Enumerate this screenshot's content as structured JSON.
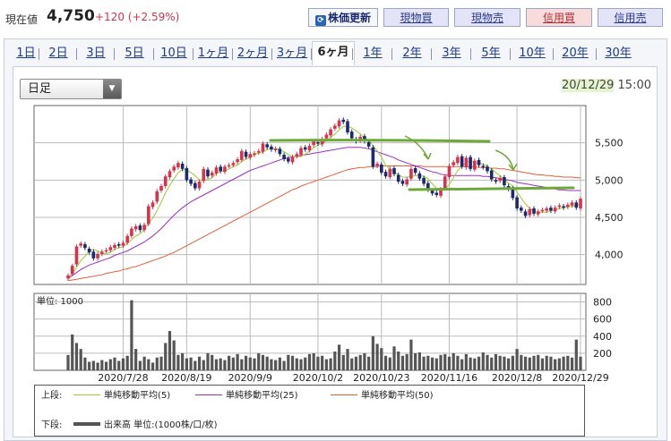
{
  "header": {
    "price_label": "現在値",
    "price_value": "4,750",
    "price_change": "+120 (+2.59%)",
    "buttons": {
      "refresh": "株価更新",
      "cash_buy": "現物買",
      "cash_sell": "現物売",
      "margin_buy": "信用買",
      "margin_sell": "信用売"
    }
  },
  "period_tabs": [
    "1日",
    "2日",
    "3日",
    "5日",
    "10日",
    "1ヶ月",
    "2ヶ月",
    "3ヶ月",
    "6ヶ月",
    "1年",
    "2年",
    "3年",
    "5年",
    "10年",
    "20年",
    "30年"
  ],
  "active_tab": "6ヶ月",
  "interval_select": {
    "value": "日足"
  },
  "datetime": {
    "date": "20/12/29",
    "time": "15:00"
  },
  "colors": {
    "up": "#d8334a",
    "down": "#1a2a6c",
    "ma5": "#9acd32",
    "ma25": "#9b30c0",
    "ma50": "#e0603a",
    "annotation": "#6fa83a",
    "volume": "#555555"
  },
  "chart_data": [
    {
      "type": "candlestick",
      "ylim": [
        3600,
        6000
      ],
      "y_ticks": [
        "5,500",
        "5,000",
        "4,500",
        "4,000"
      ],
      "y_tick_values": [
        5500,
        5000,
        4500,
        4000
      ],
      "x_labels": [
        "2020/7/28",
        "2020/8/19",
        "2020/9/9",
        "2020/10/2",
        "2020/10/23",
        "2020/11/16",
        "2020/12/8",
        "2020/12/29"
      ],
      "x_label_index": [
        13,
        28,
        43,
        59,
        74,
        90,
        106,
        121
      ],
      "closes": [
        3720,
        3850,
        4110,
        4150,
        4090,
        4030,
        3950,
        4010,
        4040,
        4060,
        4100,
        4130,
        4120,
        4160,
        4250,
        4350,
        4380,
        4330,
        4400,
        4650,
        4700,
        4850,
        4920,
        5050,
        5120,
        5180,
        5230,
        5150,
        5000,
        4950,
        4890,
        4980,
        5150,
        5050,
        5100,
        5170,
        5120,
        5180,
        5200,
        5230,
        5280,
        5390,
        5310,
        5350,
        5360,
        5390,
        5490,
        5440,
        5410,
        5420,
        5350,
        5280,
        5250,
        5310,
        5350,
        5430,
        5410,
        5460,
        5520,
        5490,
        5550,
        5610,
        5680,
        5730,
        5800,
        5780,
        5640,
        5560,
        5520,
        5580,
        5520,
        5450,
        5180,
        5220,
        5100,
        5050,
        5150,
        5080,
        4980,
        4950,
        5010,
        5150,
        5100,
        5020,
        4950,
        4870,
        4820,
        4800,
        4880,
        5050,
        5190,
        5240,
        5310,
        5180,
        5300,
        5150,
        5260,
        5200,
        5170,
        5120,
        5010,
        4980,
        5030,
        4930,
        4880,
        4760,
        4620,
        4590,
        4520,
        4610,
        4550,
        4580,
        4600,
        4620,
        4590,
        4630,
        4660,
        4630,
        4670,
        4700,
        4630,
        4750
      ],
      "opens": [
        3680,
        3740,
        3870,
        4120,
        4140,
        4080,
        4040,
        3950,
        4010,
        4050,
        4060,
        4090,
        4140,
        4120,
        4160,
        4250,
        4340,
        4390,
        4330,
        4410,
        4640,
        4710,
        4860,
        4920,
        5040,
        5130,
        5170,
        5220,
        5160,
        5010,
        4960,
        4890,
        4990,
        5140,
        5060,
        5090,
        5180,
        5110,
        5190,
        5200,
        5240,
        5270,
        5380,
        5300,
        5340,
        5370,
        5380,
        5480,
        5450,
        5400,
        5420,
        5340,
        5290,
        5240,
        5320,
        5340,
        5440,
        5400,
        5470,
        5510,
        5480,
        5560,
        5600,
        5690,
        5720,
        5810,
        5790,
        5650,
        5550,
        5530,
        5590,
        5510,
        5440,
        5190,
        5210,
        5110,
        5040,
        5160,
        5070,
        4990,
        4940,
        5020,
        5160,
        5090,
        5030,
        4960,
        4860,
        4830,
        4790,
        4890,
        5040,
        5200,
        5230,
        5320,
        5170,
        5310,
        5140,
        5270,
        5190,
        5180,
        5130,
        5000,
        4990,
        5040,
        4920,
        4890,
        4770,
        4630,
        4580,
        4530,
        4620,
        4540,
        4590,
        4590,
        4630,
        4580,
        4640,
        4650,
        4640,
        4660,
        4700,
        4620
      ],
      "ma5": [
        3700,
        3750,
        3830,
        3920,
        3980,
        4050,
        4070,
        4050,
        4020,
        4010,
        4030,
        4070,
        4090,
        4110,
        4150,
        4200,
        4250,
        4280,
        4340,
        4420,
        4490,
        4590,
        4700,
        4830,
        4930,
        5020,
        5100,
        5140,
        5140,
        5100,
        5060,
        5000,
        4990,
        5010,
        5030,
        5090,
        5120,
        5120,
        5150,
        5180,
        5200,
        5250,
        5280,
        5310,
        5340,
        5360,
        5380,
        5410,
        5420,
        5420,
        5410,
        5380,
        5340,
        5320,
        5310,
        5320,
        5350,
        5390,
        5430,
        5470,
        5490,
        5530,
        5570,
        5620,
        5670,
        5720,
        5720,
        5700,
        5660,
        5620,
        5560,
        5540,
        5460,
        5390,
        5310,
        5200,
        5150,
        5110,
        5070,
        5040,
        5040,
        5050,
        5060,
        5060,
        5050,
        5020,
        4950,
        4890,
        4860,
        4880,
        4940,
        5030,
        5130,
        5190,
        5240,
        5250,
        5240,
        5220,
        5220,
        5180,
        5150,
        5100,
        5060,
        5010,
        4960,
        4920,
        4840,
        4760,
        4680,
        4620,
        4580,
        4570,
        4570,
        4570,
        4590,
        4600,
        4620,
        4630,
        4640,
        4650,
        4660,
        4680
      ],
      "ma25": [
        3680,
        3720,
        3760,
        3800,
        3830,
        3860,
        3880,
        3900,
        3920,
        3940,
        3960,
        3990,
        4010,
        4030,
        4050,
        4080,
        4110,
        4140,
        4170,
        4210,
        4250,
        4300,
        4350,
        4410,
        4470,
        4530,
        4580,
        4630,
        4670,
        4710,
        4740,
        4770,
        4800,
        4830,
        4860,
        4890,
        4920,
        4950,
        4980,
        5010,
        5040,
        5070,
        5100,
        5130,
        5150,
        5170,
        5190,
        5210,
        5230,
        5250,
        5270,
        5290,
        5300,
        5310,
        5320,
        5330,
        5340,
        5350,
        5360,
        5370,
        5380,
        5390,
        5400,
        5410,
        5420,
        5430,
        5440,
        5440,
        5440,
        5440,
        5430,
        5420,
        5400,
        5380,
        5360,
        5340,
        5320,
        5300,
        5270,
        5250,
        5230,
        5210,
        5190,
        5170,
        5150,
        5130,
        5110,
        5100,
        5080,
        5070,
        5060,
        5060,
        5060,
        5060,
        5060,
        5060,
        5060,
        5060,
        5050,
        5050,
        5040,
        5030,
        5020,
        5010,
        5000,
        4990,
        4970,
        4960,
        4950,
        4940,
        4930,
        4920,
        4910,
        4900,
        4890,
        4880,
        4870,
        4870,
        4860,
        4860,
        4860,
        4860
      ],
      "ma50": [
        3650,
        3660,
        3670,
        3680,
        3690,
        3700,
        3710,
        3720,
        3730,
        3750,
        3760,
        3770,
        3780,
        3800,
        3810,
        3830,
        3840,
        3860,
        3880,
        3900,
        3920,
        3940,
        3960,
        3980,
        4010,
        4030,
        4060,
        4090,
        4120,
        4150,
        4180,
        4210,
        4240,
        4270,
        4300,
        4330,
        4360,
        4390,
        4420,
        4450,
        4480,
        4510,
        4540,
        4570,
        4600,
        4630,
        4660,
        4690,
        4720,
        4750,
        4780,
        4810,
        4840,
        4870,
        4890,
        4920,
        4940,
        4960,
        4980,
        5000,
        5020,
        5040,
        5060,
        5080,
        5100,
        5120,
        5140,
        5150,
        5160,
        5170,
        5170,
        5180,
        5180,
        5180,
        5190,
        5190,
        5190,
        5190,
        5190,
        5190,
        5190,
        5190,
        5190,
        5190,
        5180,
        5180,
        5180,
        5180,
        5180,
        5180,
        5180,
        5180,
        5180,
        5180,
        5180,
        5180,
        5180,
        5170,
        5170,
        5170,
        5160,
        5160,
        5150,
        5150,
        5140,
        5130,
        5120,
        5110,
        5100,
        5090,
        5080,
        5070,
        5070,
        5060,
        5060,
        5050,
        5050,
        5040,
        5040,
        5040,
        5030,
        5030
      ]
    },
    {
      "type": "bar",
      "unit_label": "単位: 1000",
      "ylim": [
        0,
        900
      ],
      "y_ticks": [
        "800",
        "600",
        "400",
        "200"
      ],
      "y_tick_values": [
        800,
        600,
        400,
        200
      ],
      "x_labels": [
        "2020/7/28",
        "2020/8/19",
        "2020/9/9",
        "2020/10/2",
        "2020/10/23",
        "2020/11/16",
        "2020/12/8",
        "2020/12/29"
      ],
      "x_label_index": [
        13,
        28,
        43,
        59,
        74,
        90,
        106,
        121
      ],
      "values": [
        180,
        420,
        320,
        250,
        150,
        100,
        110,
        90,
        120,
        100,
        130,
        150,
        110,
        140,
        170,
        820,
        250,
        110,
        160,
        130,
        90,
        150,
        160,
        320,
        460,
        350,
        180,
        200,
        140,
        150,
        110,
        160,
        120,
        200,
        180,
        130,
        140,
        120,
        170,
        150,
        190,
        130,
        170,
        150,
        140,
        200,
        180,
        160,
        130,
        120,
        150,
        110,
        180,
        170,
        140,
        130,
        150,
        190,
        200,
        160,
        170,
        130,
        140,
        220,
        300,
        180,
        250,
        140,
        160,
        180,
        200,
        160,
        400,
        310,
        260,
        170,
        150,
        280,
        220,
        170,
        190,
        360,
        200,
        210,
        160,
        170,
        150,
        140,
        180,
        190,
        160,
        200,
        170,
        130,
        190,
        150,
        140,
        160,
        210,
        180,
        150,
        190,
        170,
        160,
        140,
        170,
        250,
        180,
        160,
        150,
        170,
        180,
        140,
        170,
        160,
        130,
        140,
        160,
        170,
        150,
        360,
        160
      ]
    }
  ],
  "legend": {
    "upper_label": "上段:",
    "lower_label": "下段:",
    "ma5": "単純移動平均(5)",
    "ma25": "単純移動平均(25)",
    "ma50": "単純移動平均(50)",
    "volume": "出来高 単位:(1000株/口/枚)"
  }
}
